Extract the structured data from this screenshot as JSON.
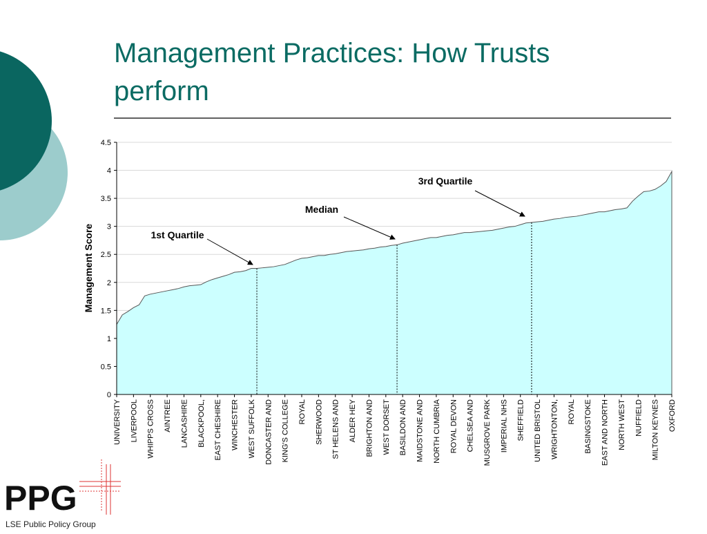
{
  "title_lines": [
    "Management Practices: How Trusts",
    "perform"
  ],
  "logo": {
    "name": "PPG",
    "subtitle": "LSE Public Policy Group"
  },
  "chart_data": {
    "type": "area",
    "ylabel": "Management Score",
    "ylim": [
      0,
      4.5
    ],
    "yticks": [
      0,
      0.5,
      1,
      1.5,
      2,
      2.5,
      3,
      3.5,
      4,
      4.5
    ],
    "color": "#ccffff",
    "annotations": [
      "1st Quartile",
      "Median",
      "3rd Quartile"
    ],
    "categories": [
      "UNIVERSITY",
      null,
      null,
      "LIVERPOOL",
      null,
      null,
      "WHIPPS CROSS",
      null,
      null,
      "AINTREE",
      null,
      null,
      "LANCASHIRE",
      null,
      null,
      "BLACKPOOL,",
      null,
      null,
      "EAST CHESHIRE",
      null,
      null,
      "WINCHESTER",
      null,
      null,
      "WEST SUFFOLK",
      null,
      null,
      "DONCASTER AND",
      null,
      null,
      "KING'S COLLEGE",
      null,
      null,
      "ROYAL",
      null,
      null,
      "SHERWOOD",
      null,
      null,
      "ST HELENS AND",
      null,
      null,
      "ALDER HEY",
      null,
      null,
      "BRIGHTON AND",
      null,
      null,
      "WEST DORSET",
      null,
      null,
      "BASILDON AND",
      null,
      null,
      "MAIDSTONE AND",
      null,
      null,
      "NORTH CUMBRIA",
      null,
      null,
      "ROYAL DEVON",
      null,
      null,
      "CHELSEA AND",
      null,
      null,
      "MUSGROVE PARK",
      null,
      null,
      "IMPERIAL NHS",
      null,
      null,
      "SHEFFIELD",
      null,
      null,
      "UNITED BRISTOL",
      null,
      null,
      "WRIGHTONTON,",
      null,
      null,
      "ROYAL",
      null,
      null,
      "BASINGSTOKE",
      null,
      null,
      "EAST AND NORTH",
      null,
      null,
      "NORTH WEST",
      null,
      null,
      "NUFFIELD",
      null,
      null,
      "MILTON KEYNES",
      null,
      null,
      "OXFORD"
    ],
    "values": [
      1.25,
      1.42,
      1.48,
      1.55,
      1.6,
      1.76,
      1.79,
      1.81,
      1.83,
      1.85,
      1.87,
      1.89,
      1.92,
      1.94,
      1.95,
      1.96,
      2.01,
      2.05,
      2.08,
      2.11,
      2.14,
      2.18,
      2.19,
      2.21,
      2.25,
      2.25,
      2.26,
      2.27,
      2.28,
      2.3,
      2.32,
      2.36,
      2.4,
      2.43,
      2.44,
      2.46,
      2.48,
      2.48,
      2.5,
      2.51,
      2.53,
      2.55,
      2.56,
      2.57,
      2.58,
      2.6,
      2.61,
      2.63,
      2.64,
      2.66,
      2.67,
      2.7,
      2.72,
      2.74,
      2.76,
      2.78,
      2.8,
      2.8,
      2.82,
      2.84,
      2.85,
      2.87,
      2.89,
      2.89,
      2.9,
      2.91,
      2.92,
      2.93,
      2.95,
      2.97,
      2.99,
      3.0,
      3.03,
      3.06,
      3.07,
      3.08,
      3.09,
      3.11,
      3.13,
      3.14,
      3.16,
      3.17,
      3.18,
      3.2,
      3.22,
      3.24,
      3.26,
      3.26,
      3.28,
      3.3,
      3.31,
      3.33,
      3.45,
      3.54,
      3.62,
      3.63,
      3.66,
      3.72,
      3.8,
      3.98
    ]
  }
}
